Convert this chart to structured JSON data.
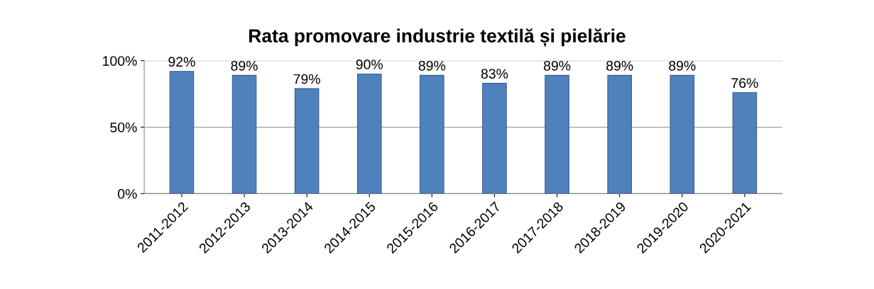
{
  "chart_data": {
    "type": "bar",
    "title": "Rata promovare industrie textilă și pielărie",
    "categories": [
      "2011-2012",
      "2012-2013",
      "2013-2014",
      "2014-2015",
      "2015-2016",
      "2016-2017",
      "2017-2018",
      "2018-2019",
      "2019-2020",
      "2020-2021"
    ],
    "values": [
      92,
      89,
      79,
      90,
      89,
      83,
      89,
      89,
      89,
      76
    ],
    "value_labels": [
      "92%",
      "89%",
      "79%",
      "90%",
      "89%",
      "83%",
      "89%",
      "89%",
      "89%",
      "76%"
    ],
    "color": "#4f81bd",
    "ylim": [
      0,
      100
    ],
    "yticks": [
      {
        "value": 0,
        "label": "0%"
      },
      {
        "value": 50,
        "label": "50%"
      },
      {
        "value": 100,
        "label": "100%"
      }
    ],
    "grid": "y",
    "legend": false
  }
}
